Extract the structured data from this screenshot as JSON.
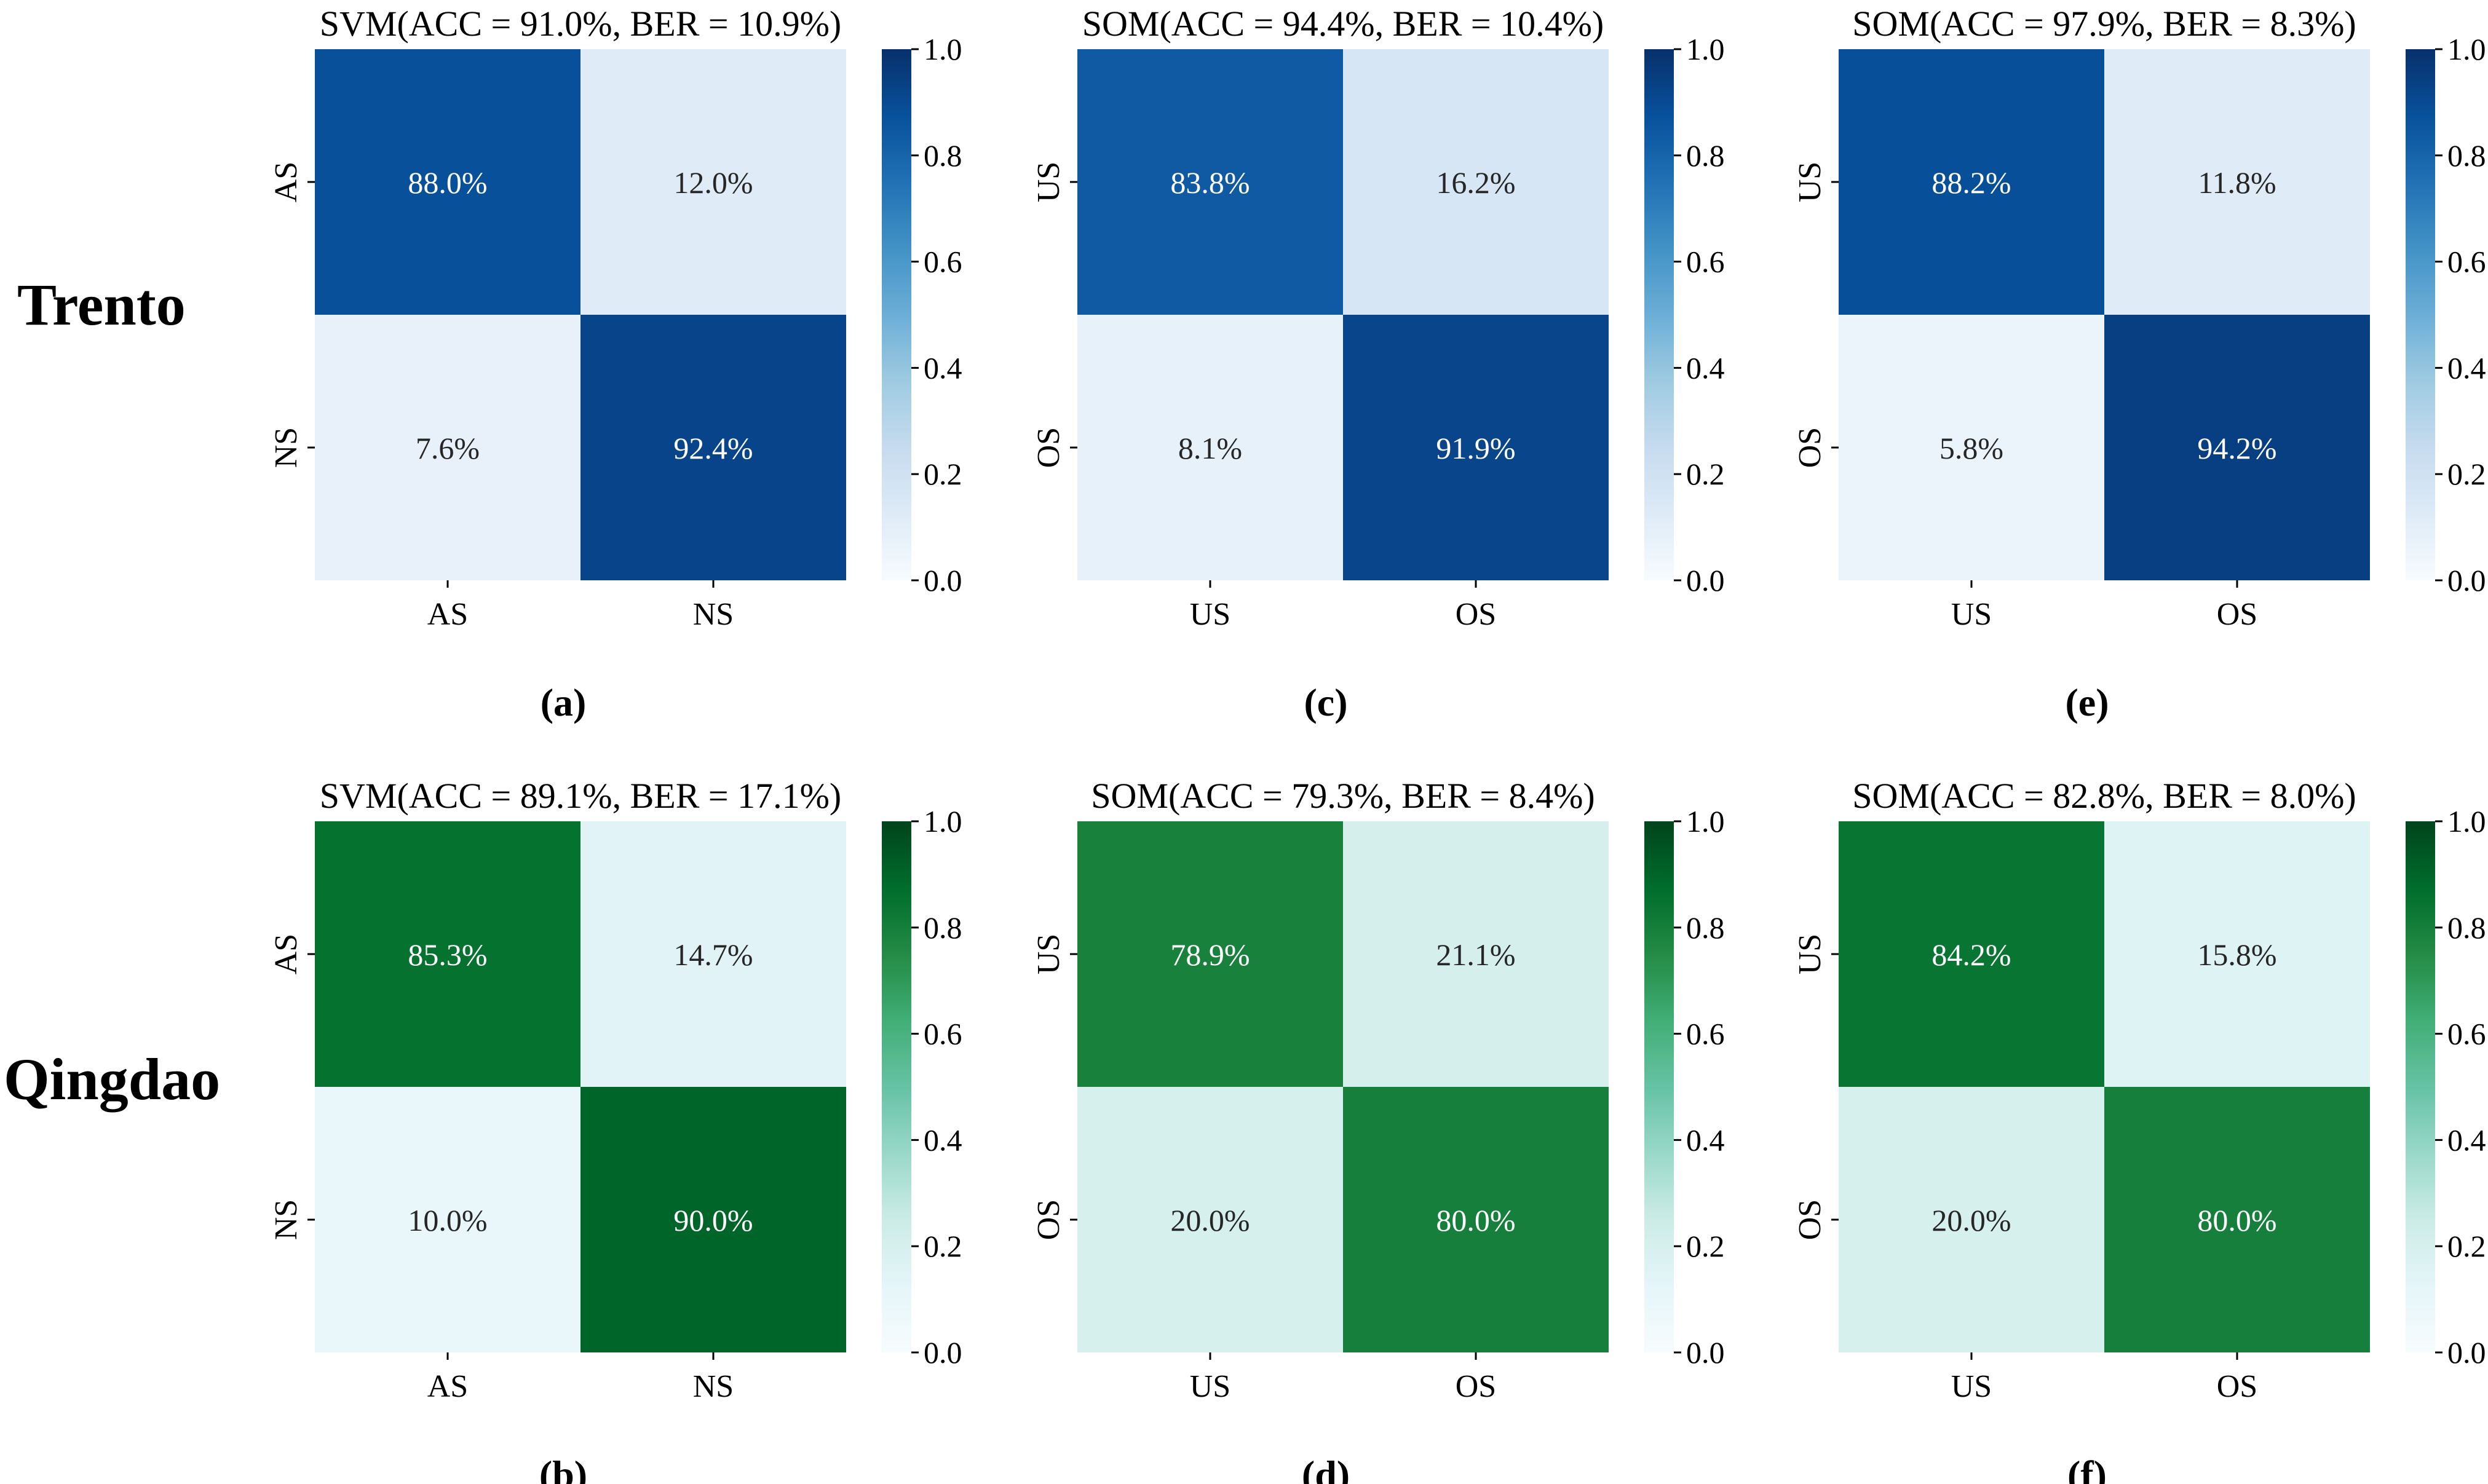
{
  "row_labels": [
    "Trento",
    "Qingdao"
  ],
  "colormaps": {
    "blue": [
      "#f7fbff",
      "#deebf7",
      "#c6dbef",
      "#9ecae1",
      "#6baed6",
      "#4292c6",
      "#2171b5",
      "#08519c",
      "#08306b"
    ],
    "green": [
      "#f7fcfd",
      "#e5f5f9",
      "#ccece6",
      "#99d8c9",
      "#66c2a4",
      "#41ae76",
      "#238b45",
      "#006d2c",
      "#00441b"
    ]
  },
  "chart_data": [
    {
      "type": "heatmap",
      "panel": "(a)",
      "colormap": "blue",
      "title": "SVM(ACC = 91.0%, BER = 10.9%)",
      "x_labels": [
        "AS",
        "NS"
      ],
      "y_labels": [
        "AS",
        "NS"
      ],
      "values": [
        [
          0.88,
          0.12
        ],
        [
          0.076,
          0.924
        ]
      ],
      "annotations": [
        [
          "88.0%",
          "12.0%"
        ],
        [
          "7.6%",
          "92.4%"
        ]
      ],
      "colorbar": {
        "range": [
          0,
          1
        ],
        "ticks": [
          "0.0",
          "0.2",
          "0.4",
          "0.6",
          "0.8",
          "1.0"
        ]
      }
    },
    {
      "type": "heatmap",
      "panel": "(c)",
      "colormap": "blue",
      "title": "SOM(ACC = 94.4%, BER = 10.4%)",
      "x_labels": [
        "US",
        "OS"
      ],
      "y_labels": [
        "US",
        "OS"
      ],
      "values": [
        [
          0.838,
          0.162
        ],
        [
          0.081,
          0.919
        ]
      ],
      "annotations": [
        [
          "83.8%",
          "16.2%"
        ],
        [
          "8.1%",
          "91.9%"
        ]
      ],
      "colorbar": {
        "range": [
          0,
          1
        ],
        "ticks": [
          "0.0",
          "0.2",
          "0.4",
          "0.6",
          "0.8",
          "1.0"
        ]
      }
    },
    {
      "type": "heatmap",
      "panel": "(e)",
      "colormap": "blue",
      "title": "SOM(ACC = 97.9%, BER = 8.3%)",
      "x_labels": [
        "US",
        "OS"
      ],
      "y_labels": [
        "US",
        "OS"
      ],
      "values": [
        [
          0.882,
          0.118
        ],
        [
          0.058,
          0.942
        ]
      ],
      "annotations": [
        [
          "88.2%",
          "11.8%"
        ],
        [
          "5.8%",
          "94.2%"
        ]
      ],
      "colorbar": {
        "range": [
          0,
          1
        ],
        "ticks": [
          "0.0",
          "0.2",
          "0.4",
          "0.6",
          "0.8",
          "1.0"
        ]
      }
    },
    {
      "type": "heatmap",
      "panel": "(b)",
      "colormap": "green",
      "title": "SVM(ACC = 89.1%, BER = 17.1%)",
      "x_labels": [
        "AS",
        "NS"
      ],
      "y_labels": [
        "AS",
        "NS"
      ],
      "values": [
        [
          0.853,
          0.147
        ],
        [
          0.1,
          0.9
        ]
      ],
      "annotations": [
        [
          "85.3%",
          "14.7%"
        ],
        [
          "10.0%",
          "90.0%"
        ]
      ],
      "colorbar": {
        "range": [
          0,
          1
        ],
        "ticks": [
          "0.0",
          "0.2",
          "0.4",
          "0.6",
          "0.8",
          "1.0"
        ]
      }
    },
    {
      "type": "heatmap",
      "panel": "(d)",
      "colormap": "green",
      "title": "SOM(ACC = 79.3%, BER = 8.4%)",
      "x_labels": [
        "US",
        "OS"
      ],
      "y_labels": [
        "US",
        "OS"
      ],
      "values": [
        [
          0.789,
          0.211
        ],
        [
          0.2,
          0.8
        ]
      ],
      "annotations": [
        [
          "78.9%",
          "21.1%"
        ],
        [
          "20.0%",
          "80.0%"
        ]
      ],
      "colorbar": {
        "range": [
          0,
          1
        ],
        "ticks": [
          "0.0",
          "0.2",
          "0.4",
          "0.6",
          "0.8",
          "1.0"
        ]
      }
    },
    {
      "type": "heatmap",
      "panel": "(f)",
      "colormap": "green",
      "title": "SOM(ACC = 82.8%, BER = 8.0%)",
      "x_labels": [
        "US",
        "OS"
      ],
      "y_labels": [
        "US",
        "OS"
      ],
      "values": [
        [
          0.842,
          0.158
        ],
        [
          0.2,
          0.8
        ]
      ],
      "annotations": [
        [
          "84.2%",
          "15.8%"
        ],
        [
          "20.0%",
          "80.0%"
        ]
      ],
      "colorbar": {
        "range": [
          0,
          1
        ],
        "ticks": [
          "0.0",
          "0.2",
          "0.4",
          "0.6",
          "0.8",
          "1.0"
        ]
      }
    }
  ]
}
